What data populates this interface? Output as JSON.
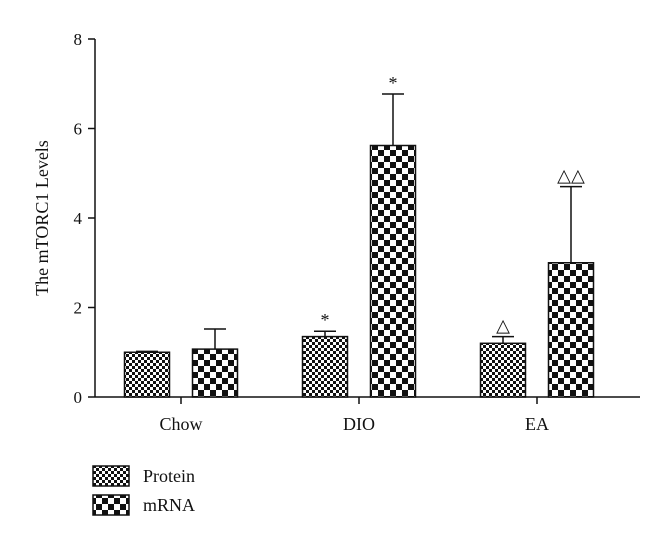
{
  "chart_data": {
    "type": "bar",
    "title": "",
    "xlabel": "",
    "ylabel": "The mTORC1 Levels",
    "ylim": [
      0,
      8
    ],
    "yticks": [
      "0",
      "2",
      "4",
      "6",
      "8"
    ],
    "categories": [
      "Chow",
      "DIO",
      "EA"
    ],
    "grid": false,
    "legend_position": "bottom-left",
    "series": [
      {
        "name": "Protein",
        "pattern": "small-checker",
        "values": [
          1.0,
          1.35,
          1.2
        ],
        "errors": [
          0.02,
          0.12,
          0.15
        ],
        "annotations": [
          "",
          "*",
          "△"
        ]
      },
      {
        "name": "mRNA",
        "pattern": "large-checker",
        "values": [
          1.07,
          5.62,
          3.0
        ],
        "errors": [
          0.45,
          1.15,
          1.7
        ],
        "annotations": [
          "",
          "*",
          "△△"
        ]
      }
    ]
  }
}
